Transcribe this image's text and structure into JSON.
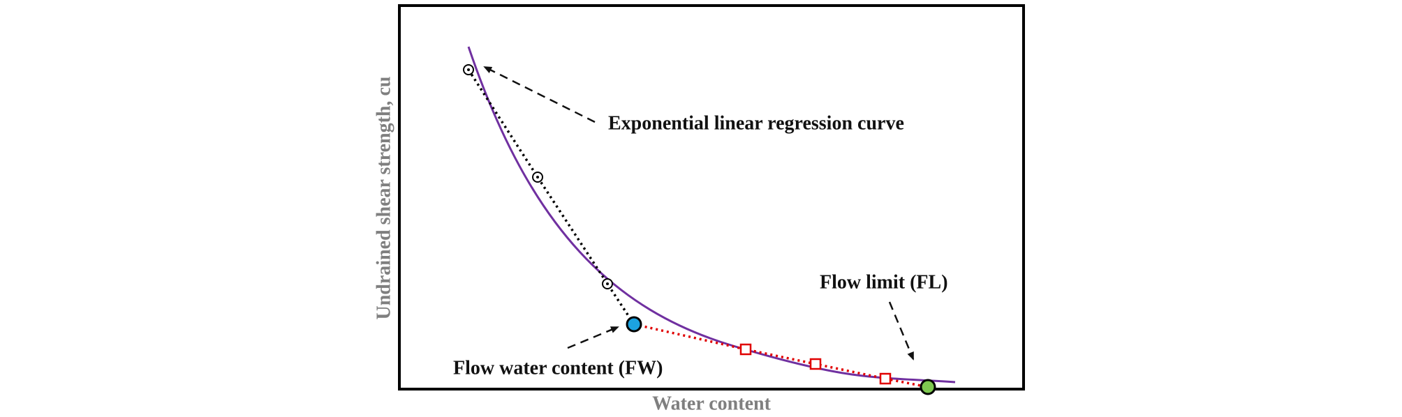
{
  "figure": {
    "x_axis_label": "Water content",
    "y_axis_label": "Undrained shear strength, cu",
    "annotations": [
      "Exponential linear regression curve",
      "Flow limit (FL)",
      "Flow water content (FW)"
    ]
  }
}
